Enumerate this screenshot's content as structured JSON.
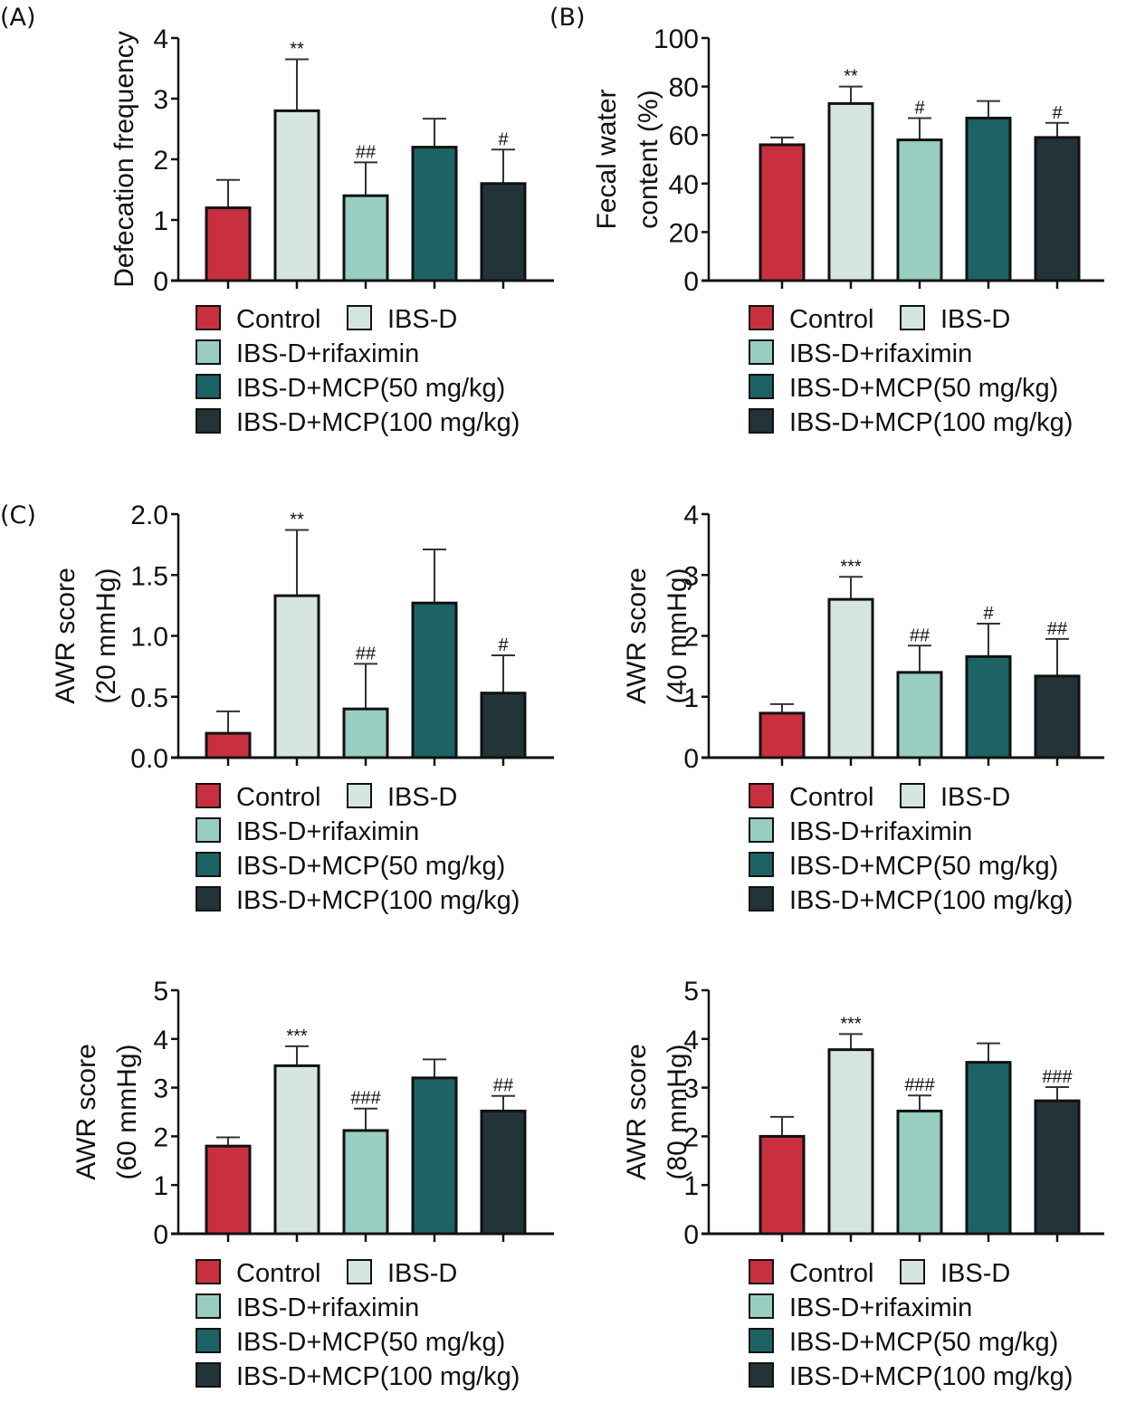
{
  "figure": {
    "panel_labels": [
      "(A)",
      "(B)",
      "(C)"
    ]
  },
  "legend": {
    "items": [
      {
        "label": "Control",
        "color": "#c8303f"
      },
      {
        "label": "IBS-D",
        "color": "#d4e6de"
      },
      {
        "label": "IBS-D+rifaximin",
        "color": "#98cdc2"
      },
      {
        "label": "IBS-D+MCP(50 mg/kg)",
        "color": "#1d6265"
      },
      {
        "label": "IBS-D+MCP(100 mg/kg)",
        "color": "#223438"
      }
    ]
  },
  "chart_data": [
    {
      "id": "A",
      "type": "bar",
      "title": "",
      "ylabel": [
        "Defecation frequency"
      ],
      "categories": [
        "Control",
        "IBS-D",
        "IBS-D+rifaximin",
        "IBS-D+MCP(50 mg/kg)",
        "IBS-D+MCP(100 mg/kg)"
      ],
      "values": [
        1.2,
        2.8,
        1.4,
        2.2,
        1.6
      ],
      "error_upper": [
        1.66,
        3.65,
        1.95,
        2.67,
        2.16
      ],
      "significance": [
        "",
        "**",
        "##",
        "",
        "#"
      ],
      "ylim": [
        0,
        4
      ],
      "yticks": [
        0,
        1,
        2,
        3,
        4
      ],
      "ytick_labels": [
        "0",
        "1",
        "2",
        "3",
        "4"
      ],
      "legend": "bottom"
    },
    {
      "id": "B",
      "type": "bar",
      "title": "",
      "ylabel": [
        "Fecal water",
        "content (%)"
      ],
      "categories": [
        "Control",
        "IBS-D",
        "IBS-D+rifaximin",
        "IBS-D+MCP(50 mg/kg)",
        "IBS-D+MCP(100 mg/kg)"
      ],
      "values": [
        56,
        73,
        58,
        67,
        59
      ],
      "error_upper": [
        59,
        80,
        67,
        74,
        65
      ],
      "significance": [
        "",
        "**",
        "#",
        "",
        "#"
      ],
      "ylim": [
        0,
        100
      ],
      "yticks": [
        0,
        20,
        40,
        60,
        80,
        100
      ],
      "ytick_labels": [
        "0",
        "20",
        "40",
        "60",
        "80",
        "100"
      ],
      "legend": "bottom"
    },
    {
      "id": "C1",
      "type": "bar",
      "title": "",
      "ylabel": [
        "AWR score",
        "(20 mmHg)"
      ],
      "categories": [
        "Control",
        "IBS-D",
        "IBS-D+rifaximin",
        "IBS-D+MCP(50 mg/kg)",
        "IBS-D+MCP(100 mg/kg)"
      ],
      "values": [
        0.2,
        1.33,
        0.4,
        1.27,
        0.53
      ],
      "error_upper": [
        0.38,
        1.87,
        0.77,
        1.71,
        0.84
      ],
      "significance": [
        "",
        "**",
        "##",
        "",
        "#"
      ],
      "ylim": [
        0,
        2.0
      ],
      "yticks": [
        0,
        0.5,
        1.0,
        1.5,
        2.0
      ],
      "ytick_labels": [
        "0.0",
        "0.5",
        "1.0",
        "1.5",
        "2.0"
      ],
      "legend": "bottom"
    },
    {
      "id": "C2",
      "type": "bar",
      "title": "",
      "ylabel": [
        "AWR score",
        "(40 mmHg)"
      ],
      "categories": [
        "Control",
        "IBS-D",
        "IBS-D+rifaximin",
        "IBS-D+MCP(50 mg/kg)",
        "IBS-D+MCP(100 mg/kg)"
      ],
      "values": [
        0.73,
        2.6,
        1.4,
        1.66,
        1.34
      ],
      "error_upper": [
        0.88,
        2.97,
        1.84,
        2.2,
        1.95
      ],
      "significance": [
        "",
        "***",
        "##",
        "#",
        "##"
      ],
      "ylim": [
        0,
        4
      ],
      "yticks": [
        0,
        1,
        2,
        3,
        4
      ],
      "ytick_labels": [
        "0",
        "1",
        "2",
        "3",
        "4"
      ],
      "legend": "bottom"
    },
    {
      "id": "C3",
      "type": "bar",
      "title": "",
      "ylabel": [
        "AWR score",
        "(60 mmHg)"
      ],
      "categories": [
        "Control",
        "IBS-D",
        "IBS-D+rifaximin",
        "IBS-D+MCP(50 mg/kg)",
        "IBS-D+MCP(100 mg/kg)"
      ],
      "values": [
        1.8,
        3.45,
        2.12,
        3.2,
        2.52
      ],
      "error_upper": [
        1.98,
        3.85,
        2.57,
        3.58,
        2.83
      ],
      "significance": [
        "",
        "***",
        "###",
        "",
        "##"
      ],
      "ylim": [
        0,
        5
      ],
      "yticks": [
        0,
        1,
        2,
        3,
        4,
        5
      ],
      "ytick_labels": [
        "0",
        "1",
        "2",
        "3",
        "4",
        "5"
      ],
      "legend": "bottom"
    },
    {
      "id": "C4",
      "type": "bar",
      "title": "",
      "ylabel": [
        "AWR score",
        "(80 mmHg)"
      ],
      "categories": [
        "Control",
        "IBS-D",
        "IBS-D+rifaximin",
        "IBS-D+MCP(50 mg/kg)",
        "IBS-D+MCP(100 mg/kg)"
      ],
      "values": [
        2.0,
        3.78,
        2.52,
        3.52,
        2.73
      ],
      "error_upper": [
        2.4,
        4.1,
        2.84,
        3.91,
        3.01
      ],
      "significance": [
        "",
        "***",
        "###",
        "",
        "###"
      ],
      "ylim": [
        0,
        5
      ],
      "yticks": [
        0,
        1,
        2,
        3,
        4,
        5
      ],
      "ytick_labels": [
        "0",
        "1",
        "2",
        "3",
        "4",
        "5"
      ],
      "legend": "bottom"
    }
  ]
}
